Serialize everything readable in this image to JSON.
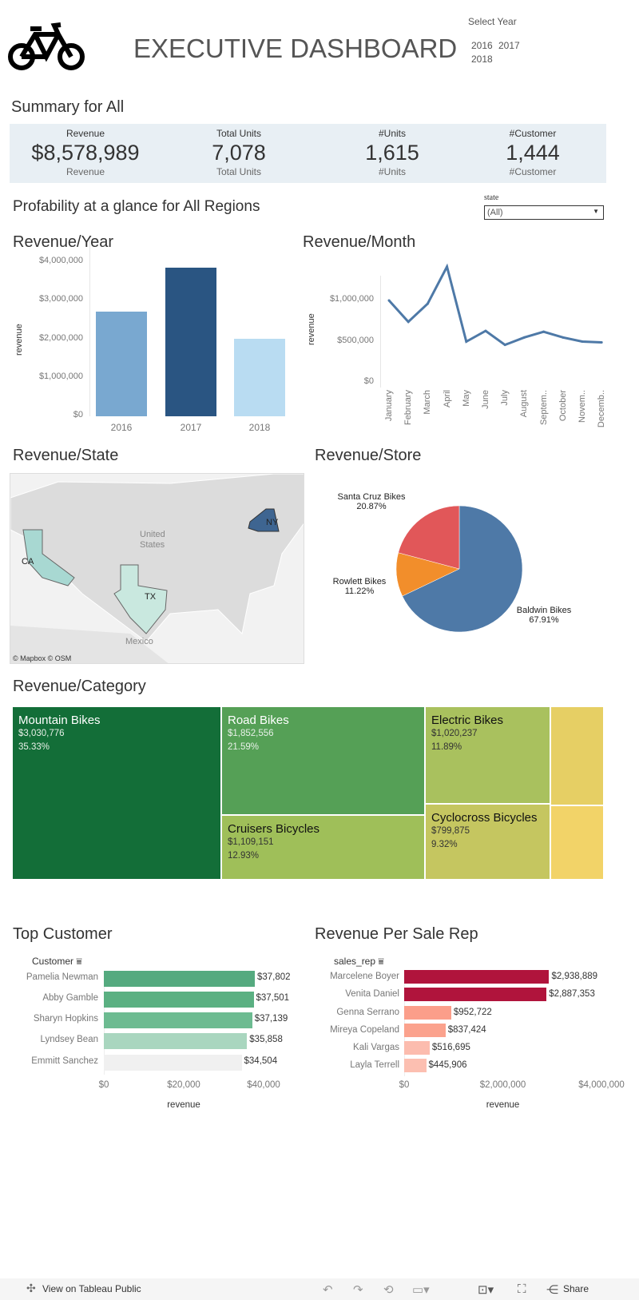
{
  "header": {
    "title": "EXECUTIVE DASHBOARD",
    "logo_icon": "bicycle-icon",
    "year_filter": {
      "label": "Select Year",
      "options": [
        "2016",
        "2017",
        "2018"
      ]
    }
  },
  "summary": {
    "title": "Summary for All",
    "band_color": "#e8eff4",
    "kpis": [
      {
        "label": "Revenue",
        "value": "$8,578,989",
        "sublabel": "Revenue"
      },
      {
        "label": "Total Units",
        "value": "7,078",
        "sublabel": "Total Units"
      },
      {
        "label": "#Units",
        "value": "1,615",
        "sublabel": "#Units"
      },
      {
        "label": "#Customer",
        "value": "1,444",
        "sublabel": "#Customer"
      }
    ]
  },
  "profitability": {
    "title": "Profability at a glance for All Regions",
    "state_filter": {
      "label": "state",
      "value": "(All)"
    }
  },
  "map": {
    "title": "Revenue/State",
    "labels": [
      "CA",
      "TX",
      "NY"
    ],
    "place_labels": [
      "United",
      "States",
      "Mexico"
    ],
    "attribution": "© Mapbox  © OSM"
  },
  "chart_data": [
    {
      "type": "bar",
      "title": "Revenue/Year",
      "ylabel": "revenue",
      "categories": [
        "2016",
        "2017",
        "2018"
      ],
      "values": [
        2710000,
        3850000,
        2020000
      ],
      "ylim": [
        0,
        4000000
      ],
      "yticks": [
        "$0",
        "$1,000,000",
        "$2,000,000",
        "$3,000,000",
        "$4,000,000"
      ],
      "colors": [
        "#79a8d0",
        "#2a5582",
        "#b9dcf2"
      ]
    },
    {
      "type": "line",
      "title": "Revenue/Month",
      "ylabel": "revenue",
      "categories": [
        "January",
        "February",
        "March",
        "April",
        "May",
        "June",
        "July",
        "August",
        "Septem..",
        "October",
        "Novem..",
        "Decemb.."
      ],
      "values": [
        1000000,
        740000,
        960000,
        1410000,
        500000,
        630000,
        460000,
        550000,
        620000,
        550000,
        500000,
        490000
      ],
      "ylim": [
        0,
        1500000
      ],
      "yticks": [
        "$0",
        "$500,000",
        "$1,000,000"
      ],
      "color": "#4e79a7"
    },
    {
      "type": "pie",
      "title": "Revenue/Store",
      "slices": [
        {
          "label": "Baldwin Bikes",
          "pct": "67.91%",
          "value": 67.91,
          "color": "#4e79a7"
        },
        {
          "label": "Rowlett Bikes",
          "pct": "11.22%",
          "value": 11.22,
          "color": "#f28e2b"
        },
        {
          "label": "Santa Cruz Bikes",
          "pct": "20.87%",
          "value": 20.87,
          "color": "#e15759"
        }
      ]
    },
    {
      "type": "treemap",
      "title": "Revenue/Category",
      "items": [
        {
          "label": "Mountain Bikes",
          "value": "$3,030,776",
          "pct": "35.33%",
          "color": "#136e38"
        },
        {
          "label": "Road Bikes",
          "value": "$1,852,556",
          "pct": "21.59%",
          "color": "#55a056"
        },
        {
          "label": "Cruisers Bicycles",
          "value": "$1,109,151",
          "pct": "12.93%",
          "color": "#9fbf59",
          "dark": true
        },
        {
          "label": "Electric Bikes",
          "value": "$1,020,237",
          "pct": "11.89%",
          "color": "#a9c15e",
          "dark": true
        },
        {
          "label": "Cyclocross Bicycles",
          "value": "$799,875",
          "pct": "9.32%",
          "color": "#c5c660",
          "dark": true
        },
        {
          "label": "",
          "value": "",
          "pct": "",
          "color": "#e6cf64"
        },
        {
          "label": "",
          "value": "",
          "pct": "",
          "color": "#f2d368"
        }
      ]
    },
    {
      "type": "bar",
      "orientation": "horizontal",
      "title": "Top Customer",
      "field": "Customer",
      "xlabel": "revenue",
      "xlim": [
        0,
        40000
      ],
      "xticks": [
        "$0",
        "$20,000",
        "$40,000"
      ],
      "categories": [
        "Pamelia Newman",
        "Abby Gamble",
        "Sharyn Hopkins",
        "Lyndsey Bean",
        "Emmitt Sanchez"
      ],
      "values": [
        37802,
        37501,
        37139,
        35858,
        34504
      ],
      "labels": [
        "$37,802",
        "$37,501",
        "$37,139",
        "$35,858",
        "$34,504"
      ],
      "colors": [
        "#55aa7f",
        "#5bb082",
        "#6dbb91",
        "#a9d6bf",
        "#f0f0f0"
      ]
    },
    {
      "type": "bar",
      "orientation": "horizontal",
      "title": "Revenue Per Sale Rep",
      "field": "sales_rep",
      "xlabel": "revenue",
      "xlim": [
        0,
        4000000
      ],
      "xticks": [
        "$0",
        "$2,000,000",
        "$4,000,000"
      ],
      "categories": [
        "Marcelene Boyer",
        "Venita Daniel",
        "Genna Serrano",
        "Mireya Copeland",
        "Kali Vargas",
        "Layla Terrell"
      ],
      "values": [
        2938889,
        2887353,
        952722,
        837424,
        516695,
        445906
      ],
      "labels": [
        "$2,938,889",
        "$2,887,353",
        "$952,722",
        "$837,424",
        "$516,695",
        "$445,906"
      ],
      "colors": [
        "#b0143c",
        "#b0143c",
        "#fb9e8a",
        "#fba28d",
        "#fcbcae",
        "#fcbfb1"
      ]
    }
  ],
  "footer": {
    "view_label": "View on Tableau Public",
    "share_label": "Share"
  }
}
